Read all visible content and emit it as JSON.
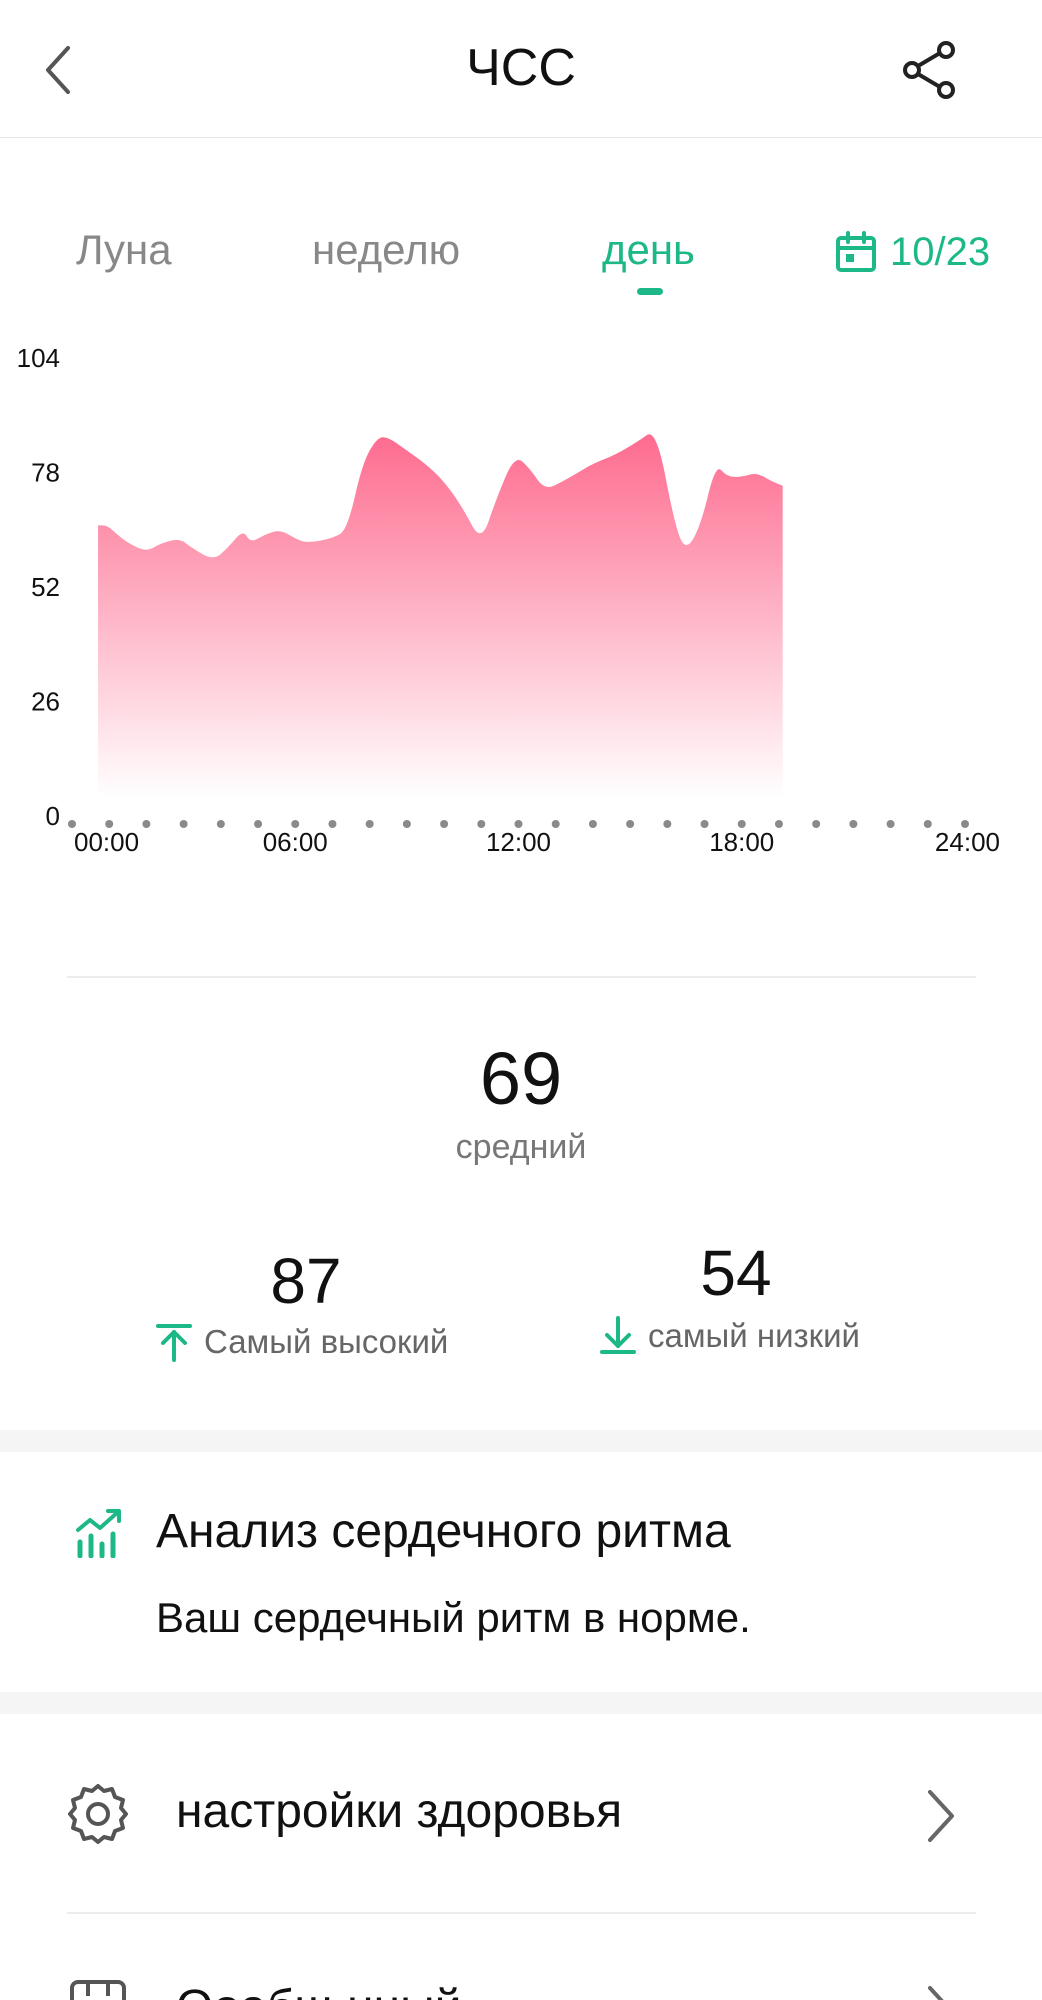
{
  "header": {
    "title": "ЧСС"
  },
  "tabs": [
    {
      "label": "Луна",
      "active": false
    },
    {
      "label": "неделю",
      "active": false
    },
    {
      "label": "день",
      "active": true
    }
  ],
  "date": {
    "label": "10/23",
    "icon": "calendar-icon"
  },
  "colors": {
    "accent": "#1db888",
    "chart_fill_top": "#fe6b8f",
    "chart_fill_bottom": "#ffffff"
  },
  "chart_data": {
    "type": "area",
    "title": "",
    "xlabel": "",
    "ylabel": "",
    "ylim": [
      0,
      104
    ],
    "yticks": [
      "0",
      "26",
      "52",
      "78",
      "104"
    ],
    "xticks": [
      "00:00",
      "06:00",
      "12:00",
      "18:00",
      "24:00"
    ],
    "xlim_hours": [
      0,
      24
    ],
    "series": [
      {
        "x_hours": [
          0.7,
          0.95,
          1.2,
          1.5,
          2.0,
          2.4,
          2.9,
          3.2,
          3.8,
          4.2,
          4.6,
          4.8,
          5.2,
          5.6,
          6.0,
          6.3,
          7.0,
          7.4,
          7.8,
          8.2,
          8.5,
          9.0,
          9.5,
          10.0,
          10.5,
          11.0,
          11.4,
          11.9,
          12.3,
          12.7,
          13.2,
          13.6,
          14.0,
          14.6,
          15.2,
          15.7,
          16.2,
          16.5,
          16.9,
          17.3,
          17.6,
          18.0,
          18.4,
          18.8,
          19.1
        ],
        "y": [
          66,
          66,
          64,
          62,
          60,
          62,
          63,
          61,
          58,
          61,
          65,
          62,
          64,
          65,
          63,
          62,
          63,
          65,
          80,
          86,
          86,
          83,
          80,
          76,
          70,
          62,
          72,
          82,
          79,
          74,
          76,
          78,
          80,
          82,
          85,
          88,
          66,
          60,
          66,
          80,
          77,
          77,
          78,
          76,
          75
        ]
      }
    ],
    "grid": false,
    "legend": "none"
  },
  "stats": {
    "average": {
      "value": "69",
      "label": "средний"
    },
    "highest": {
      "value": "87",
      "label": "Самый высокий"
    },
    "lowest": {
      "value": "54",
      "label": "самый низкий"
    }
  },
  "analysis": {
    "title": "Анализ сердечного ритма",
    "text": "Ваш сердечный ритм в норме."
  },
  "settings": {
    "label": "настройки здоровья"
  },
  "next_item": {
    "label": "Ооабщ нный"
  }
}
